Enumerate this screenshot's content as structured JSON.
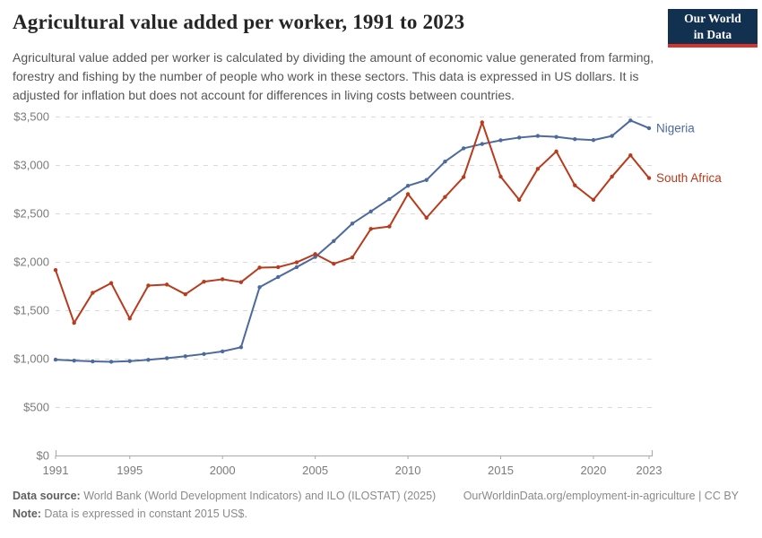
{
  "header": {
    "title": "Agricultural value added per worker, 1991 to 2023",
    "logo_line1": "Our World",
    "logo_line2": "in Data",
    "subtitle": "Agricultural value added per worker is calculated by dividing the amount of economic value generated from farming, forestry and fishing by the number of people who work in these sectors. This data is expressed in US dollars. It is adjusted for inflation but does not account for differences in living costs between countries."
  },
  "footer": {
    "source_label": "Data source:",
    "source_text": " World Bank (World Development Indicators) and ILO (ILOSTAT) (2025)",
    "url": "OurWorldinData.org/employment-in-agriculture | CC BY",
    "note_label": "Note:",
    "note_text": " Data is expressed in constant 2015 US$."
  },
  "chart_data": {
    "type": "line",
    "title": "Agricultural value added per worker, 1991 to 2023",
    "ylabel": "",
    "xlabel": "",
    "ylim": [
      0,
      3500
    ],
    "grid": "horizontal-dashed",
    "legend_position": "line-end-labels",
    "years": [
      1991,
      1992,
      1993,
      1994,
      1995,
      1996,
      1997,
      1998,
      1999,
      2000,
      2001,
      2002,
      2003,
      2004,
      2005,
      2006,
      2007,
      2008,
      2009,
      2010,
      2011,
      2012,
      2013,
      2014,
      2015,
      2016,
      2017,
      2018,
      2019,
      2020,
      2021,
      2022,
      2023
    ],
    "yticks": {
      "values": [
        0,
        500,
        1000,
        1500,
        2000,
        2500,
        3000,
        3500
      ],
      "labels": [
        "$0",
        "$500",
        "$1,000",
        "$1,500",
        "$2,000",
        "$2,500",
        "$3,000",
        "$3,500"
      ]
    },
    "xticks": {
      "values": [
        1991,
        1995,
        2000,
        2005,
        2010,
        2015,
        2020,
        2023
      ],
      "labels": [
        "1991",
        "1995",
        "2000",
        "2005",
        "2010",
        "2015",
        "2020",
        "2023"
      ]
    },
    "series": [
      {
        "name": "Nigeria",
        "color": "#4c6a9e",
        "values": [
          990,
          980,
          972,
          968,
          975,
          988,
          1005,
          1025,
          1048,
          1075,
          1118,
          1738,
          1843,
          1945,
          2050,
          2215,
          2395,
          2520,
          2648,
          2785,
          2845,
          3035,
          3172,
          3217,
          3255,
          3283,
          3300,
          3290,
          3267,
          3257,
          3300,
          3460,
          3380
        ]
      },
      {
        "name": "South Africa",
        "color": "#b93a1c",
        "values": [
          1915,
          1370,
          1680,
          1780,
          1415,
          1755,
          1765,
          1665,
          1795,
          1820,
          1790,
          1940,
          1945,
          1995,
          2080,
          1980,
          2045,
          2340,
          2365,
          2700,
          2455,
          2670,
          2875,
          3440,
          2880,
          2640,
          2960,
          3140,
          2790,
          2640,
          2880,
          3100,
          2865
        ]
      }
    ]
  }
}
